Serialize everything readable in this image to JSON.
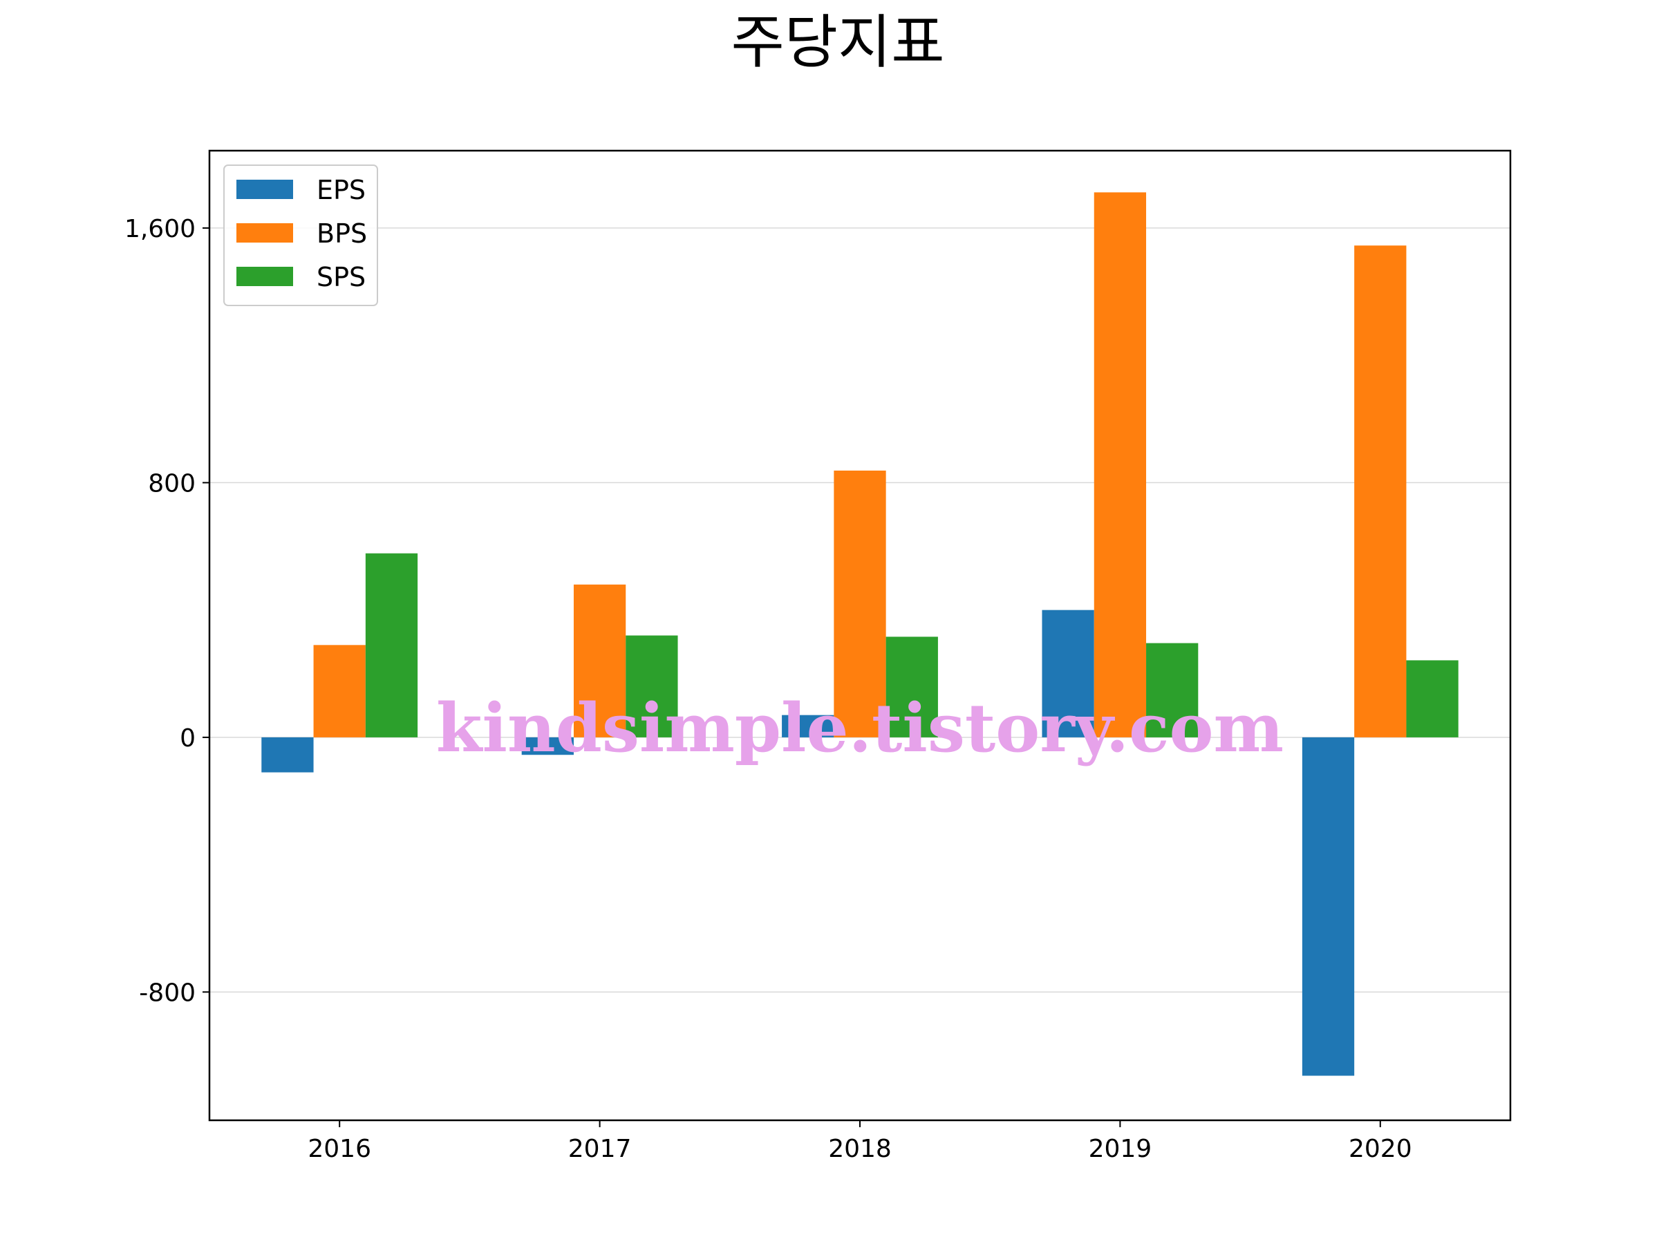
{
  "chart_data": {
    "type": "bar",
    "title": "주당지표",
    "xlabel": "",
    "ylabel": "",
    "categories": [
      "2016",
      "2017",
      "2018",
      "2019",
      "2020"
    ],
    "series": [
      {
        "name": "EPS",
        "color": "#1f77b4",
        "values": [
          -110,
          -55,
          70,
          400,
          -1063
        ]
      },
      {
        "name": "BPS",
        "color": "#ff7f0e",
        "values": [
          290,
          480,
          838,
          1712,
          1545
        ]
      },
      {
        "name": "SPS",
        "color": "#2ca02c",
        "values": [
          578,
          320,
          316,
          296,
          242
        ]
      }
    ],
    "ylim": [
      -1203,
      1843
    ],
    "yticks": [
      -800,
      0,
      800,
      1600
    ],
    "ytick_labels": [
      "-800",
      "0",
      "800",
      "1,600"
    ],
    "grid": "y",
    "legend_position": "top-left"
  },
  "watermark": "kindsimple.tistory.com"
}
